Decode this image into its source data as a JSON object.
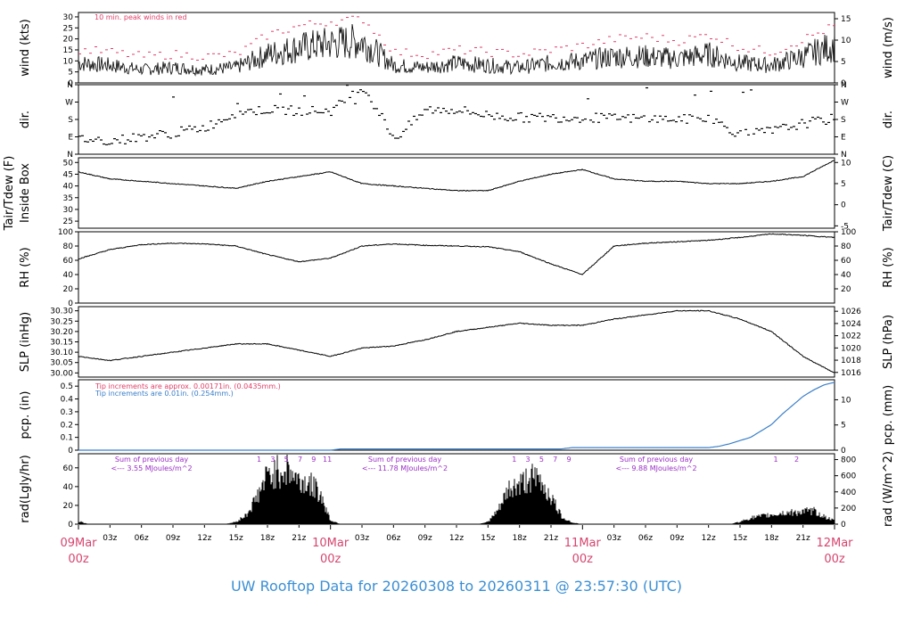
{
  "footer": {
    "title": "UW Rooftop Data for 20260308  to  20260311 @ 23:57:30  (UTC)"
  },
  "colors": {
    "peak": "#e0406a",
    "line": "#000000",
    "precip": "#3a7fc9",
    "radlabel": "#9a2fc4",
    "daylabel": "#d6456f",
    "footer": "#3b8fd4"
  },
  "chart_data": [
    {
      "type": "line",
      "panel": "wind",
      "ylabel_left": "wind (kts)",
      "ylabel_right": "wind (m/s)",
      "ylim": [
        0,
        32
      ],
      "yticks_left": [
        "0",
        "5",
        "10",
        "15",
        "20",
        "25",
        "30"
      ],
      "yticks_right": [
        "0",
        "5",
        "10",
        "15"
      ],
      "annotation": "10 min. peak winds in red",
      "x_hours": [
        0,
        3,
        6,
        9,
        12,
        15,
        18,
        21,
        24,
        27,
        30,
        33,
        36,
        39,
        42,
        45,
        48,
        51,
        54,
        57,
        60,
        63,
        66,
        69,
        72
      ],
      "series": [
        {
          "values": [
            9,
            8,
            6,
            7,
            6,
            7,
            13,
            16,
            18,
            19,
            8,
            7,
            9,
            8,
            7,
            9,
            10,
            12,
            12,
            11,
            13,
            9,
            8,
            12,
            17
          ]
        },
        {
          "values": [
            15,
            14,
            12,
            13,
            12,
            13,
            22,
            26,
            28,
            29,
            14,
            13,
            15,
            14,
            13,
            15,
            17,
            20,
            21,
            19,
            22,
            16,
            14,
            20,
            26
          ]
        }
      ]
    },
    {
      "type": "scatter",
      "panel": "dir",
      "ylabel_left": "dir.",
      "ylabel_right": "dir.",
      "ylim": [
        0,
        360
      ],
      "yticks_left": [
        "N",
        "E",
        "S",
        "W",
        "N"
      ],
      "yticks_right": [
        "N",
        "E",
        "S",
        "W",
        "N"
      ],
      "x_hours": [
        0,
        3,
        6,
        9,
        12,
        15,
        18,
        21,
        24,
        27,
        30,
        33,
        36,
        39,
        42,
        45,
        48,
        51,
        54,
        57,
        60,
        63,
        66,
        69,
        72
      ],
      "values": [
        80,
        70,
        90,
        110,
        140,
        220,
        230,
        225,
        225,
        350,
        80,
        230,
        230,
        200,
        190,
        190,
        190,
        185,
        185,
        180,
        185,
        100,
        120,
        160,
        185
      ]
    },
    {
      "type": "line",
      "panel": "temperature",
      "ylabel_left": "Tair/Tdew (F)\nInside Box",
      "ylabel_right": "Tair/Tdew (C)",
      "ylim": [
        22,
        52
      ],
      "yticks_left": [
        "25",
        "30",
        "35",
        "40",
        "45",
        "50"
      ],
      "yticks_right": [
        "-5",
        "0",
        "5",
        "10"
      ],
      "x_hours": [
        0,
        3,
        6,
        9,
        12,
        15,
        18,
        21,
        24,
        27,
        30,
        33,
        36,
        39,
        42,
        45,
        48,
        51,
        54,
        57,
        60,
        63,
        66,
        69,
        72
      ],
      "values": [
        46,
        43,
        42,
        41,
        40,
        39,
        42,
        44,
        46,
        41,
        40,
        39,
        38,
        38,
        42,
        45,
        47,
        43,
        42,
        42,
        41,
        41,
        42,
        44,
        51
      ]
    },
    {
      "type": "line",
      "panel": "rh",
      "ylabel_left": "RH (%)",
      "ylabel_right": "RH (%)",
      "ylim": [
        0,
        100
      ],
      "yticks_left": [
        "0",
        "20",
        "40",
        "60",
        "80",
        "100"
      ],
      "yticks_right": [
        "20",
        "40",
        "60",
        "80",
        "100"
      ],
      "x_hours": [
        0,
        3,
        6,
        9,
        12,
        15,
        18,
        21,
        24,
        27,
        30,
        33,
        36,
        39,
        42,
        45,
        48,
        51,
        54,
        57,
        60,
        63,
        66,
        69,
        72
      ],
      "values": [
        62,
        75,
        82,
        84,
        83,
        80,
        68,
        58,
        63,
        80,
        83,
        81,
        80,
        79,
        72,
        55,
        40,
        80,
        84,
        86,
        88,
        92,
        97,
        95,
        92
      ]
    },
    {
      "type": "line",
      "panel": "slp",
      "ylabel_left": "SLP (inHg)",
      "ylabel_right": "SLP (hPa)",
      "ylim": [
        29.98,
        30.32
      ],
      "yticks_left": [
        "30.00",
        "30.05",
        "30.10",
        "30.15",
        "30.20",
        "30.25",
        "30.30"
      ],
      "yticks_right": [
        "1016",
        "1018",
        "1020",
        "1022",
        "1024",
        "1026"
      ],
      "x_hours": [
        0,
        3,
        6,
        9,
        12,
        15,
        18,
        21,
        24,
        27,
        30,
        33,
        36,
        39,
        42,
        45,
        48,
        51,
        54,
        57,
        60,
        63,
        66,
        69,
        72
      ],
      "values": [
        30.08,
        30.06,
        30.08,
        30.1,
        30.12,
        30.14,
        30.14,
        30.11,
        30.08,
        30.12,
        30.13,
        30.16,
        30.2,
        30.22,
        30.24,
        30.23,
        30.23,
        30.26,
        30.28,
        30.3,
        30.3,
        30.26,
        30.2,
        30.08,
        30.0
      ]
    },
    {
      "type": "area",
      "panel": "precip",
      "ylabel_left": "pcp. (in)",
      "ylabel_right": "pcp. (mm)",
      "ylim": [
        0,
        0.55
      ],
      "yticks_left": [
        "0",
        "0.1",
        "0.2",
        "0.3",
        "0.4",
        "0.5"
      ],
      "yticks_right": [
        "0",
        "5",
        "10"
      ],
      "legend": [
        "Tip increments are approx. 0.00171in. (0.0435mm.)",
        "Tip increments are 0.01in. (0.254mm.)"
      ],
      "x_hours": [
        0,
        12,
        24,
        25,
        36,
        46,
        47,
        60,
        61,
        62,
        64,
        66,
        67,
        68,
        69,
        70,
        71,
        72
      ],
      "values": [
        0.0,
        0.0,
        0.0,
        0.01,
        0.01,
        0.01,
        0.02,
        0.02,
        0.03,
        0.05,
        0.1,
        0.2,
        0.28,
        0.35,
        0.42,
        0.47,
        0.51,
        0.53
      ]
    },
    {
      "type": "area",
      "panel": "radiation",
      "ylabel_left": "rad(Lgly/hr)",
      "ylabel_right": "rad (W/m^2)",
      "ylim": [
        0,
        75
      ],
      "yticks_left": [
        "0",
        "20",
        "40",
        "60"
      ],
      "yticks_right": [
        "0",
        "200",
        "400",
        "600",
        "800"
      ],
      "x_hours": [
        0,
        1,
        14,
        15,
        16,
        17,
        18,
        19,
        20,
        21,
        22,
        23,
        24,
        25,
        38,
        39,
        40,
        41,
        42,
        43,
        44,
        45,
        46,
        47,
        48,
        49,
        62,
        63,
        64,
        65,
        66,
        67,
        68,
        69,
        70,
        71,
        72
      ],
      "values": [
        4,
        0,
        0,
        3,
        12,
        35,
        62,
        68,
        70,
        55,
        52,
        40,
        5,
        0,
        0,
        3,
        18,
        45,
        50,
        60,
        55,
        35,
        10,
        2,
        0,
        0,
        0,
        3,
        8,
        10,
        12,
        14,
        15,
        16,
        17,
        10,
        4
      ],
      "daily_notes": [
        {
          "line1": "Sum of previous day",
          "line2": "<--- 3.55 MJoules/m^2"
        },
        {
          "line1": "Sum of previous day",
          "line2": "<--- 11.78 MJoules/m^2"
        },
        {
          "line1": "Sum of previous day",
          "line2": "<--- 9.88 MJoules/m^2"
        }
      ],
      "hour_marks_day1": [
        "1",
        "3",
        "5",
        "7",
        "9",
        "11"
      ],
      "hour_marks_day2": [
        "1",
        "3",
        "5",
        "7",
        "9"
      ],
      "hour_marks_day3": [
        "1",
        "2"
      ]
    }
  ],
  "x_axis": {
    "tick_labels": [
      "03z",
      "06z",
      "09z",
      "12z",
      "15z",
      "18z",
      "21z",
      "03z",
      "06z",
      "09z",
      "12z",
      "15z",
      "18z",
      "21z",
      "03z",
      "06z",
      "09z",
      "12z",
      "15z",
      "18z",
      "21z"
    ],
    "tick_hours": [
      3,
      6,
      9,
      12,
      15,
      18,
      21,
      27,
      30,
      33,
      36,
      39,
      42,
      45,
      51,
      54,
      57,
      60,
      63,
      66,
      69
    ],
    "day_labels": [
      {
        "hour": 0,
        "date": "09Mar",
        "time": "00z"
      },
      {
        "hour": 24,
        "date": "10Mar",
        "time": "00z"
      },
      {
        "hour": 48,
        "date": "11Mar",
        "time": "00z"
      },
      {
        "hour": 72,
        "date": "12Mar",
        "time": "00z"
      }
    ]
  }
}
